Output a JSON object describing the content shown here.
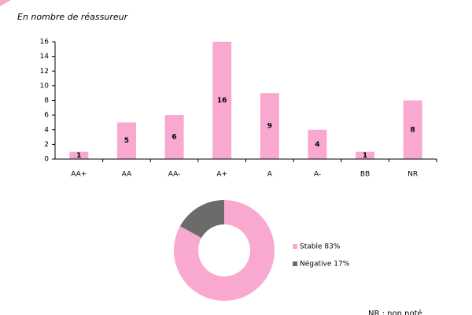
{
  "chart_data": [
    {
      "type": "bar",
      "subtitle": "En nombre de réassureur",
      "categories": [
        "AA+",
        "AA",
        "AA-",
        "A+",
        "A",
        "A-",
        "BB",
        "NR"
      ],
      "values": [
        1,
        5,
        6,
        16,
        9,
        4,
        1,
        8
      ],
      "color": "#f9a8d0",
      "ylim": [
        0,
        16
      ],
      "yticks": [
        0,
        2,
        4,
        6,
        8,
        10,
        12,
        14,
        16
      ]
    },
    {
      "type": "donut",
      "labels": [
        "Stable 83%",
        "Négative 17%"
      ],
      "values": [
        83,
        17
      ],
      "colors": [
        "#f9a8d0",
        "#6b6b6b"
      ],
      "annotation": "NR : non noté"
    }
  ]
}
